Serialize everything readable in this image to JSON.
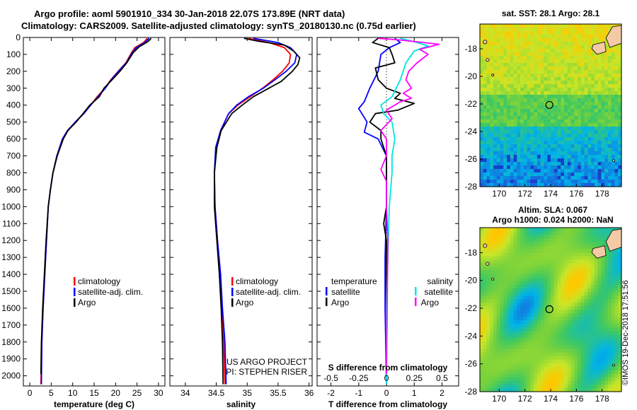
{
  "title": {
    "line1": "Argo profile: aoml 5901910_334 30-Jan-2018 22.07S 173.89E (NRT data)",
    "line2": "Climatology: CARS2009. Satellite-adjusted climatology: synTS_20180130.nc (0.75d earlier)"
  },
  "timestamp": "©IMOS 19-Dec-2018 17:51:56",
  "credits": [
    "US ARGO PROJECT",
    "PI: STEPHEN RISER"
  ],
  "colors": {
    "climatology": "#ff0000",
    "satellite": "#0000ff",
    "argo": "#000000",
    "salinity_satellite": "#00e5e5",
    "salinity_argo": "#ff00ff"
  },
  "chart_data": [
    {
      "id": "temperature",
      "type": "line",
      "xlabel": "temperature (deg C)",
      "xlim": [
        -1.5,
        31.5
      ],
      "ylim": [
        2060,
        0
      ],
      "xticks": [
        0,
        5,
        10,
        15,
        20,
        25,
        30
      ],
      "yticks": [
        0,
        100,
        200,
        300,
        400,
        500,
        600,
        700,
        800,
        900,
        1000,
        1100,
        1200,
        1300,
        1400,
        1500,
        1600,
        1700,
        1800,
        1900,
        2000
      ],
      "legend": [
        "climatology",
        "satellite-adj. clim.",
        "Argo"
      ],
      "series": [
        {
          "name": "climatology",
          "color": "#ff0000",
          "points": [
            [
              27.4,
              5
            ],
            [
              26.5,
              30
            ],
            [
              24.5,
              60
            ],
            [
              23.7,
              90
            ],
            [
              22.4,
              150
            ],
            [
              20.6,
              200
            ],
            [
              18.9,
              250
            ],
            [
              17.5,
              300
            ],
            [
              15.7,
              350
            ],
            [
              14.2,
              400
            ],
            [
              12.5,
              450
            ],
            [
              10.6,
              500
            ],
            [
              8.9,
              550
            ],
            [
              7.6,
              600
            ],
            [
              6.3,
              700
            ],
            [
              5.4,
              800
            ],
            [
              4.8,
              900
            ],
            [
              4.3,
              1000
            ],
            [
              3.9,
              1200
            ],
            [
              3.5,
              1400
            ],
            [
              3.1,
              1600
            ],
            [
              2.8,
              1800
            ],
            [
              2.6,
              2050
            ]
          ]
        },
        {
          "name": "satellite-adj. clim.",
          "color": "#0000ff",
          "points": [
            [
              27.8,
              5
            ],
            [
              26.8,
              30
            ],
            [
              24.8,
              60
            ],
            [
              23.9,
              90
            ],
            [
              22.5,
              150
            ],
            [
              20.7,
              200
            ],
            [
              19.0,
              250
            ],
            [
              17.6,
              300
            ],
            [
              15.9,
              350
            ],
            [
              14.2,
              400
            ],
            [
              12.6,
              450
            ],
            [
              10.6,
              500
            ],
            [
              8.8,
              550
            ],
            [
              7.6,
              600
            ],
            [
              6.3,
              700
            ],
            [
              5.4,
              800
            ],
            [
              4.8,
              900
            ],
            [
              4.3,
              1000
            ],
            [
              3.9,
              1200
            ],
            [
              3.5,
              1400
            ],
            [
              3.1,
              1600
            ],
            [
              2.8,
              1800
            ],
            [
              2.7,
              2050
            ]
          ]
        },
        {
          "name": "Argo",
          "color": "#000000",
          "points": [
            [
              28.3,
              5
            ],
            [
              27.5,
              25
            ],
            [
              25.5,
              55
            ],
            [
              24.1,
              90
            ],
            [
              22.6,
              150
            ],
            [
              21.0,
              200
            ],
            [
              19.2,
              250
            ],
            [
              17.3,
              300
            ],
            [
              16.2,
              350
            ],
            [
              14.0,
              400
            ],
            [
              12.1,
              460
            ],
            [
              10.8,
              500
            ],
            [
              8.9,
              550
            ],
            [
              7.8,
              600
            ],
            [
              6.4,
              700
            ],
            [
              5.4,
              800
            ],
            [
              4.8,
              900
            ],
            [
              4.3,
              1000
            ],
            [
              3.8,
              1200
            ],
            [
              3.4,
              1400
            ],
            [
              3.0,
              1600
            ],
            [
              2.7,
              1800
            ],
            [
              2.6,
              1990
            ]
          ]
        }
      ]
    },
    {
      "id": "salinity",
      "type": "line",
      "xlabel": "salinity",
      "xlim": [
        33.75,
        36.05
      ],
      "ylim": [
        2060,
        0
      ],
      "xticks": [
        34,
        34.5,
        35,
        35.5,
        36
      ],
      "legend": [
        "climatology",
        "satellite-adj. clim.",
        "Argo"
      ],
      "series": [
        {
          "name": "climatology",
          "color": "#ff0000",
          "points": [
            [
              35.02,
              5
            ],
            [
              35.35,
              30
            ],
            [
              35.6,
              60
            ],
            [
              35.7,
              100
            ],
            [
              35.68,
              150
            ],
            [
              35.57,
              200
            ],
            [
              35.42,
              250
            ],
            [
              35.25,
              300
            ],
            [
              35.05,
              350
            ],
            [
              34.85,
              400
            ],
            [
              34.7,
              450
            ],
            [
              34.57,
              550
            ],
            [
              34.5,
              650
            ],
            [
              34.47,
              800
            ],
            [
              34.48,
              1000
            ],
            [
              34.52,
              1200
            ],
            [
              34.56,
              1400
            ],
            [
              34.59,
              1600
            ],
            [
              34.62,
              1800
            ],
            [
              34.64,
              2050
            ]
          ]
        },
        {
          "name": "satellite-adj. clim.",
          "color": "#0000ff",
          "points": [
            [
              35.1,
              5
            ],
            [
              35.5,
              30
            ],
            [
              35.7,
              60
            ],
            [
              35.8,
              100
            ],
            [
              35.77,
              150
            ],
            [
              35.63,
              200
            ],
            [
              35.45,
              250
            ],
            [
              35.26,
              300
            ],
            [
              35.02,
              350
            ],
            [
              34.83,
              400
            ],
            [
              34.7,
              450
            ],
            [
              34.57,
              550
            ],
            [
              34.49,
              650
            ],
            [
              34.47,
              800
            ],
            [
              34.48,
              1000
            ],
            [
              34.52,
              1200
            ],
            [
              34.57,
              1400
            ],
            [
              34.6,
              1600
            ],
            [
              34.64,
              1800
            ],
            [
              34.66,
              2050
            ]
          ]
        },
        {
          "name": "Argo",
          "color": "#000000",
          "points": [
            [
              34.95,
              5
            ],
            [
              35.15,
              20
            ],
            [
              35.6,
              45
            ],
            [
              35.75,
              80
            ],
            [
              35.85,
              120
            ],
            [
              35.82,
              160
            ],
            [
              35.73,
              200
            ],
            [
              35.55,
              260
            ],
            [
              35.35,
              300
            ],
            [
              35.1,
              350
            ],
            [
              34.92,
              400
            ],
            [
              34.75,
              450
            ],
            [
              34.58,
              550
            ],
            [
              34.51,
              650
            ],
            [
              34.47,
              800
            ],
            [
              34.47,
              1000
            ],
            [
              34.51,
              1200
            ],
            [
              34.55,
              1400
            ],
            [
              34.58,
              1600
            ],
            [
              34.6,
              1800
            ],
            [
              34.61,
              2050
            ]
          ]
        }
      ]
    },
    {
      "id": "difference",
      "type": "line",
      "xlabel": "T difference from climatology",
      "x2label": "S difference from climatology",
      "xlim": [
        -2.5,
        2.6
      ],
      "ylim": [
        2060,
        0
      ],
      "xticks": [
        -2,
        -1,
        0,
        1,
        2
      ],
      "x2ticks": [
        {
          "label": "-0.5",
          "t": -2
        },
        {
          "label": "-0.25",
          "t": -1
        },
        {
          "label": "0",
          "t": 0
        },
        {
          "label": "0.25",
          "t": 1
        },
        {
          "label": "0.5",
          "t": 2
        }
      ],
      "legend_left": {
        "title": "temperature",
        "items": [
          "satellite",
          "Argo"
        ]
      },
      "legend_right": {
        "title": "salinity",
        "items": [
          "satellite",
          "Argo"
        ]
      },
      "series": [
        {
          "name": "temperature satellite",
          "color": "#0000ff",
          "points": [
            [
              0.3,
              5
            ],
            [
              0.5,
              30
            ],
            [
              0.1,
              60
            ],
            [
              -0.2,
              100
            ],
            [
              -0.3,
              200
            ],
            [
              -0.6,
              300
            ],
            [
              -0.8,
              380
            ],
            [
              -1.0,
              420
            ],
            [
              -0.7,
              500
            ],
            [
              -0.8,
              560
            ],
            [
              -0.3,
              600
            ],
            [
              0,
              700
            ],
            [
              0,
              800
            ],
            [
              0,
              1000
            ],
            [
              -0.05,
              1300
            ],
            [
              -0.05,
              1600
            ],
            [
              0,
              2050
            ]
          ]
        },
        {
          "name": "temperature Argo",
          "color": "#000000",
          "points": [
            [
              -0.3,
              5
            ],
            [
              -0.5,
              30
            ],
            [
              0.1,
              60
            ],
            [
              0.2,
              100
            ],
            [
              0.3,
              150
            ],
            [
              -0.4,
              180
            ],
            [
              -0.3,
              250
            ],
            [
              0,
              300
            ],
            [
              0.5,
              330
            ],
            [
              0.3,
              360
            ],
            [
              1.0,
              390
            ],
            [
              0.4,
              430
            ],
            [
              -0.4,
              450
            ],
            [
              -0.6,
              500
            ],
            [
              -0.2,
              550
            ],
            [
              -0.2,
              600
            ],
            [
              0,
              700
            ],
            [
              0,
              800
            ],
            [
              0,
              1000
            ],
            [
              -0.1,
              1100
            ],
            [
              0,
              1200
            ],
            [
              0,
              1500
            ],
            [
              0,
              1990
            ]
          ]
        },
        {
          "name": "salinity satellite",
          "color": "#00e5e5",
          "points": [
            [
              0.5,
              5
            ],
            [
              1.0,
              25
            ],
            [
              1.5,
              50
            ],
            [
              1.0,
              80
            ],
            [
              0.7,
              150
            ],
            [
              0.5,
              250
            ],
            [
              0.2,
              350
            ],
            [
              -0.2,
              400
            ],
            [
              -0.1,
              450
            ],
            [
              0.2,
              500
            ],
            [
              0.3,
              600
            ],
            [
              0.2,
              700
            ],
            [
              0.2,
              800
            ],
            [
              0.1,
              1000
            ],
            [
              0.05,
              1300
            ],
            [
              0,
              1600
            ],
            [
              0,
              2050
            ]
          ]
        },
        {
          "name": "salinity Argo",
          "color": "#ff00ff",
          "points": [
            [
              -0.3,
              5
            ],
            [
              0.5,
              15
            ],
            [
              1.9,
              40
            ],
            [
              1.2,
              70
            ],
            [
              1.5,
              100
            ],
            [
              1.1,
              150
            ],
            [
              0.8,
              200
            ],
            [
              0.7,
              250
            ],
            [
              0.9,
              300
            ],
            [
              0.6,
              330
            ],
            [
              0.9,
              360
            ],
            [
              0.5,
              380
            ],
            [
              0,
              430
            ],
            [
              0.2,
              480
            ],
            [
              -0.2,
              550
            ],
            [
              0,
              600
            ],
            [
              0,
              700
            ],
            [
              -0.2,
              780
            ],
            [
              0,
              850
            ],
            [
              0,
              1000
            ],
            [
              0.05,
              1200
            ],
            [
              0,
              1990
            ]
          ]
        }
      ]
    },
    {
      "id": "sst-map",
      "type": "heatmap",
      "title": "sat. SST: 28.1  Argo: 28.1",
      "xticks": [
        170,
        172,
        174,
        176,
        178
      ],
      "yticks": [
        -18,
        -20,
        -22,
        -24,
        -26,
        -28
      ],
      "xlim": [
        168.5,
        179.5
      ],
      "ylim": [
        -28,
        -16.2
      ],
      "marker": [
        173.9,
        -22.07
      ]
    },
    {
      "id": "sla-map",
      "type": "heatmap",
      "title": "Altim. SLA: 0.067",
      "subtitle": "Argo h1000: 0.024 h2000: NaN",
      "xticks": [
        170,
        172,
        174,
        176,
        178
      ],
      "yticks": [
        -18,
        -20,
        -22,
        -24,
        -26,
        -28
      ],
      "xlim": [
        168.5,
        179.5
      ],
      "ylim": [
        -28,
        -16.2
      ],
      "marker": [
        173.9,
        -22.07
      ]
    }
  ]
}
